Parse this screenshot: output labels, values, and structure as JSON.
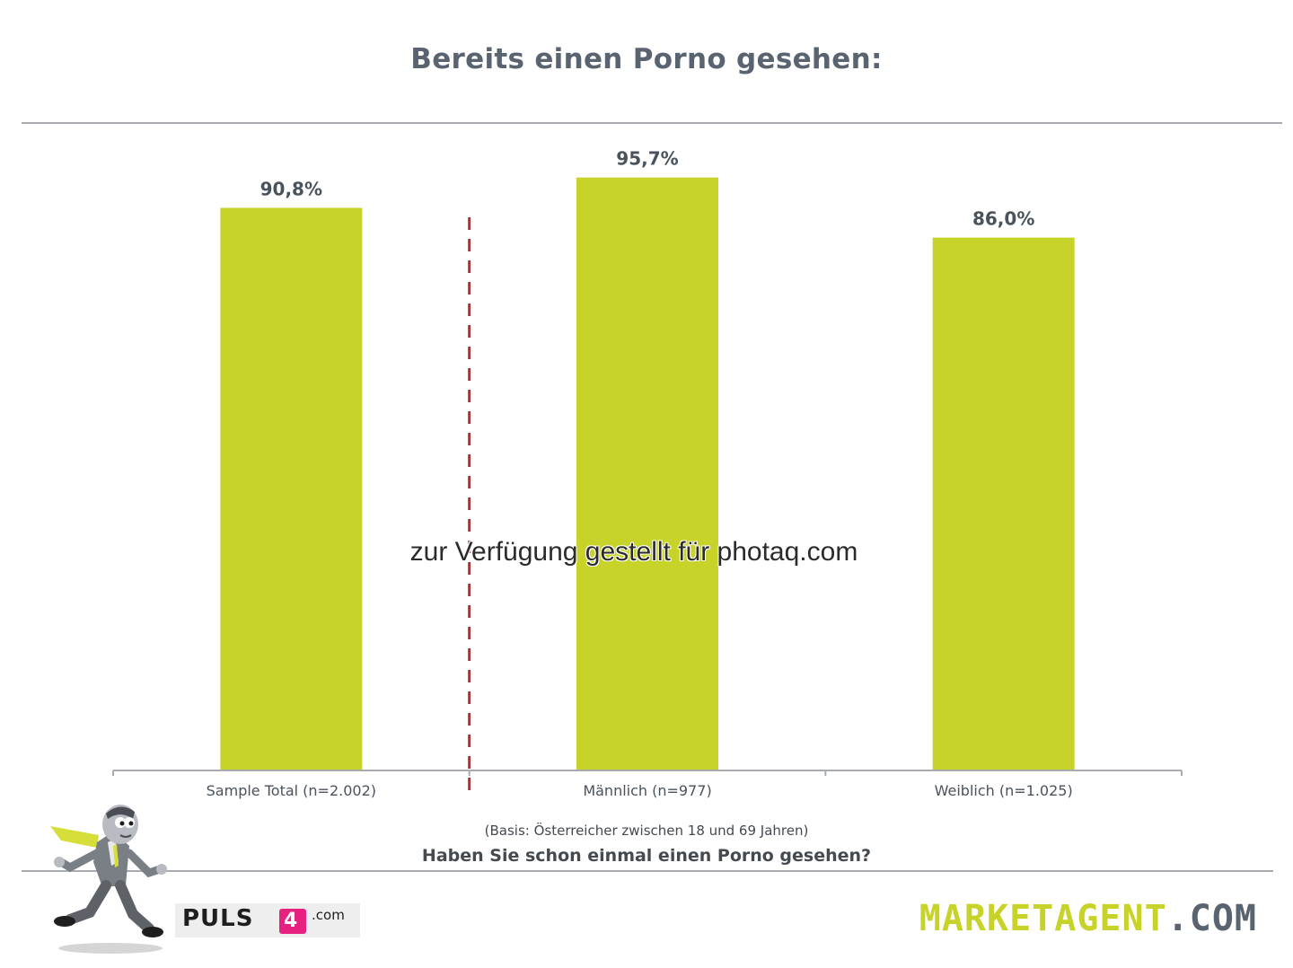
{
  "title": "Bereits einen Porno gesehen:",
  "chart_data": {
    "type": "bar",
    "categories": [
      "Sample Total (n=2.002)",
      "Männlich (n=977)",
      "Weiblich (n=1.025)"
    ],
    "values": [
      90.8,
      95.7,
      86.0
    ],
    "value_labels": [
      "90,8%",
      "95,7%",
      "86,0%"
    ],
    "ylim": [
      0,
      100
    ],
    "bar_color": "#c8d32a",
    "separator_after_index": 0,
    "separator_color": "#c0282d",
    "grid": false
  },
  "watermark": "zur Verfügung gestellt für photaq.com",
  "basis": "(Basis: Österreicher zwischen 18 und 69 Jahren)",
  "question": "Haben Sie schon einmal einen Porno gesehen?",
  "logos": {
    "puls4_main": "PULS",
    "puls4_digit": "4",
    "puls4_suffix": ".com",
    "marketagent_main": "MARKETAGENT",
    "marketagent_suffix": ".COM",
    "marketagent_main_color": "#c8d32a",
    "marketagent_suffix_color": "#5a6470"
  }
}
